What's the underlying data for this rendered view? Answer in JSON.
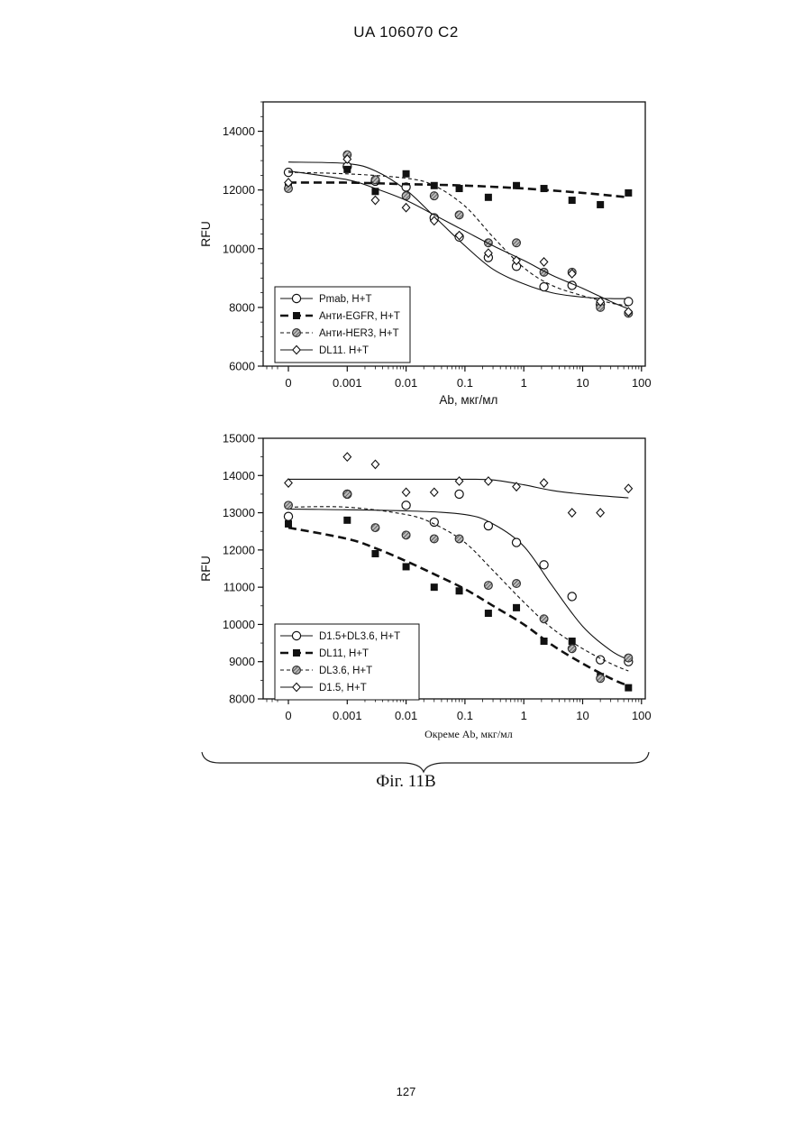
{
  "header": {
    "patent_id": "UA   106070   C2"
  },
  "figure_caption": "Фіг. 11B",
  "page_number": "127",
  "chart_data": [
    {
      "type": "scatter",
      "title": "",
      "xlabel": "Ab, мкг/мл",
      "ylabel": "RFU",
      "x_scale": "log-with-zero",
      "x_ticks": [
        "0",
        "0.001",
        "0.01",
        "0.1",
        "1",
        "10",
        "100"
      ],
      "y_ticks": [
        "6000",
        "8000",
        "10000",
        "12000",
        "14000"
      ],
      "ylim": [
        6000,
        15000
      ],
      "legend_position": "bottom-left",
      "series": [
        {
          "name": "Pmab, H+T",
          "marker": "open-circle",
          "line": "solid",
          "points": [
            [
              0,
              12600
            ],
            [
              0.001,
              12800
            ],
            [
              0.003,
              12300
            ],
            [
              0.01,
              12100
            ],
            [
              0.03,
              11050
            ],
            [
              0.08,
              10400
            ],
            [
              0.25,
              9700
            ],
            [
              0.75,
              9400
            ],
            [
              2.2,
              8700
            ],
            [
              6.6,
              8750
            ],
            [
              20,
              8100
            ],
            [
              60,
              8200
            ]
          ],
          "fit": [
            [
              0,
              12950
            ],
            [
              0.001,
              12900
            ],
            [
              0.003,
              12650
            ],
            [
              0.01,
              12000
            ],
            [
              0.03,
              11100
            ],
            [
              0.1,
              10100
            ],
            [
              0.3,
              9300
            ],
            [
              1,
              8800
            ],
            [
              3,
              8500
            ],
            [
              10,
              8350
            ],
            [
              30,
              8300
            ],
            [
              60,
              8300
            ]
          ]
        },
        {
          "name": "Анти-EGFR, H+T",
          "marker": "filled-square",
          "line": "dash-bold",
          "points": [
            [
              0,
              12100
            ],
            [
              0.001,
              12700
            ],
            [
              0.003,
              11950
            ],
            [
              0.01,
              12550
            ],
            [
              0.03,
              12150
            ],
            [
              0.08,
              12050
            ],
            [
              0.25,
              11750
            ],
            [
              0.75,
              12150
            ],
            [
              2.2,
              12050
            ],
            [
              6.6,
              11650
            ],
            [
              20,
              11500
            ],
            [
              60,
              11900
            ]
          ],
          "fit": [
            [
              0,
              12250
            ],
            [
              0.001,
              12250
            ],
            [
              0.01,
              12200
            ],
            [
              0.1,
              12150
            ],
            [
              1,
              12050
            ],
            [
              10,
              11900
            ],
            [
              60,
              11750
            ]
          ]
        },
        {
          "name": "Анти-HER3, H+T",
          "marker": "hatched-circle",
          "line": "dash-thin",
          "points": [
            [
              0,
              12050
            ],
            [
              0.001,
              13200
            ],
            [
              0.003,
              12350
            ],
            [
              0.01,
              11800
            ],
            [
              0.03,
              11800
            ],
            [
              0.08,
              11150
            ],
            [
              0.25,
              10200
            ],
            [
              0.75,
              10200
            ],
            [
              2.2,
              9200
            ],
            [
              6.6,
              9200
            ],
            [
              20,
              8000
            ],
            [
              60,
              7800
            ]
          ],
          "fit": [
            [
              0,
              12600
            ],
            [
              0.001,
              12550
            ],
            [
              0.01,
              12400
            ],
            [
              0.03,
              12150
            ],
            [
              0.1,
              11450
            ],
            [
              0.3,
              10400
            ],
            [
              1,
              9350
            ],
            [
              3,
              8750
            ],
            [
              10,
              8400
            ],
            [
              30,
              8150
            ],
            [
              60,
              8050
            ]
          ]
        },
        {
          "name": "DL11. H+T",
          "marker": "open-diamond",
          "line": "solid",
          "points": [
            [
              0,
              12250
            ],
            [
              0.001,
              13050
            ],
            [
              0.003,
              11650
            ],
            [
              0.01,
              11400
            ],
            [
              0.03,
              10950
            ],
            [
              0.08,
              10450
            ],
            [
              0.25,
              9850
            ],
            [
              0.75,
              9600
            ],
            [
              2.2,
              9550
            ],
            [
              6.6,
              9150
            ],
            [
              20,
              8200
            ],
            [
              60,
              7850
            ]
          ],
          "fit": [
            [
              0,
              12650
            ],
            [
              0.001,
              12350
            ],
            [
              0.003,
              12050
            ],
            [
              0.01,
              11650
            ],
            [
              0.03,
              11150
            ],
            [
              0.1,
              10600
            ],
            [
              0.3,
              10100
            ],
            [
              1,
              9600
            ],
            [
              3,
              9100
            ],
            [
              10,
              8650
            ],
            [
              30,
              8200
            ],
            [
              60,
              7950
            ]
          ]
        }
      ]
    },
    {
      "type": "scatter",
      "title": "",
      "xlabel": "Окреме Ab, мкг/мл",
      "ylabel": "RFU",
      "x_scale": "log-with-zero",
      "x_ticks": [
        "0",
        "0.001",
        "0.01",
        "0.1",
        "1",
        "10",
        "100"
      ],
      "y_ticks": [
        "8000",
        "9000",
        "10000",
        "11000",
        "12000",
        "13000",
        "14000",
        "15000"
      ],
      "ylim": [
        8000,
        15000
      ],
      "legend_position": "bottom-left",
      "series": [
        {
          "name": "D1.5+DL3.6, H+T",
          "marker": "open-circle",
          "line": "solid",
          "points": [
            [
              0,
              12900
            ],
            [
              0.001,
              13500
            ],
            [
              0.01,
              13200
            ],
            [
              0.03,
              12750
            ],
            [
              0.08,
              13500
            ],
            [
              0.25,
              12650
            ],
            [
              0.75,
              12200
            ],
            [
              2.2,
              11600
            ],
            [
              6.6,
              10750
            ],
            [
              20,
              9050
            ],
            [
              60,
              9000
            ]
          ],
          "fit": [
            [
              0,
              13100
            ],
            [
              0.01,
              13050
            ],
            [
              0.1,
              12950
            ],
            [
              0.3,
              12700
            ],
            [
              1,
              12100
            ],
            [
              3,
              11050
            ],
            [
              10,
              9950
            ],
            [
              30,
              9300
            ],
            [
              60,
              9050
            ]
          ]
        },
        {
          "name": "DL11, H+T",
          "marker": "filled-square",
          "line": "dash-bold",
          "points": [
            [
              0,
              12700
            ],
            [
              0.001,
              12800
            ],
            [
              0.003,
              11900
            ],
            [
              0.01,
              11550
            ],
            [
              0.03,
              11000
            ],
            [
              0.08,
              10900
            ],
            [
              0.25,
              10300
            ],
            [
              0.75,
              10450
            ],
            [
              2.2,
              9550
            ],
            [
              6.6,
              9550
            ],
            [
              20,
              8600
            ],
            [
              60,
              8300
            ]
          ],
          "fit": [
            [
              0,
              12600
            ],
            [
              0.001,
              12300
            ],
            [
              0.003,
              12050
            ],
            [
              0.01,
              11700
            ],
            [
              0.03,
              11350
            ],
            [
              0.1,
              10950
            ],
            [
              0.3,
              10500
            ],
            [
              1,
              10000
            ],
            [
              3,
              9450
            ],
            [
              10,
              8950
            ],
            [
              30,
              8550
            ],
            [
              60,
              8350
            ]
          ]
        },
        {
          "name": "DL3.6, H+T",
          "marker": "hatched-circle",
          "line": "dash-thin",
          "points": [
            [
              0,
              13200
            ],
            [
              0.001,
              13500
            ],
            [
              0.003,
              12600
            ],
            [
              0.01,
              12400
            ],
            [
              0.03,
              12300
            ],
            [
              0.08,
              12300
            ],
            [
              0.25,
              11050
            ],
            [
              0.75,
              11100
            ],
            [
              2.2,
              10150
            ],
            [
              6.6,
              9350
            ],
            [
              20,
              8550
            ],
            [
              60,
              9100
            ]
          ],
          "fit": [
            [
              0,
              13150
            ],
            [
              0.001,
              13150
            ],
            [
              0.01,
              12950
            ],
            [
              0.03,
              12700
            ],
            [
              0.1,
              12200
            ],
            [
              0.3,
              11450
            ],
            [
              1,
              10600
            ],
            [
              3,
              9900
            ],
            [
              10,
              9350
            ],
            [
              30,
              8950
            ],
            [
              60,
              8750
            ]
          ]
        },
        {
          "name": "D1.5, H+T",
          "marker": "open-diamond",
          "line": "solid",
          "points": [
            [
              0,
              13800
            ],
            [
              0.001,
              14500
            ],
            [
              0.003,
              14300
            ],
            [
              0.01,
              13550
            ],
            [
              0.03,
              13550
            ],
            [
              0.08,
              13850
            ],
            [
              0.25,
              13850
            ],
            [
              0.75,
              13700
            ],
            [
              2.2,
              13800
            ],
            [
              6.6,
              13000
            ],
            [
              20,
              13000
            ],
            [
              60,
              13650
            ]
          ],
          "fit": [
            [
              0,
              13900
            ],
            [
              0.01,
              13900
            ],
            [
              0.1,
              13900
            ],
            [
              0.3,
              13880
            ],
            [
              1,
              13750
            ],
            [
              3,
              13600
            ],
            [
              10,
              13500
            ],
            [
              60,
              13400
            ]
          ]
        }
      ]
    }
  ]
}
